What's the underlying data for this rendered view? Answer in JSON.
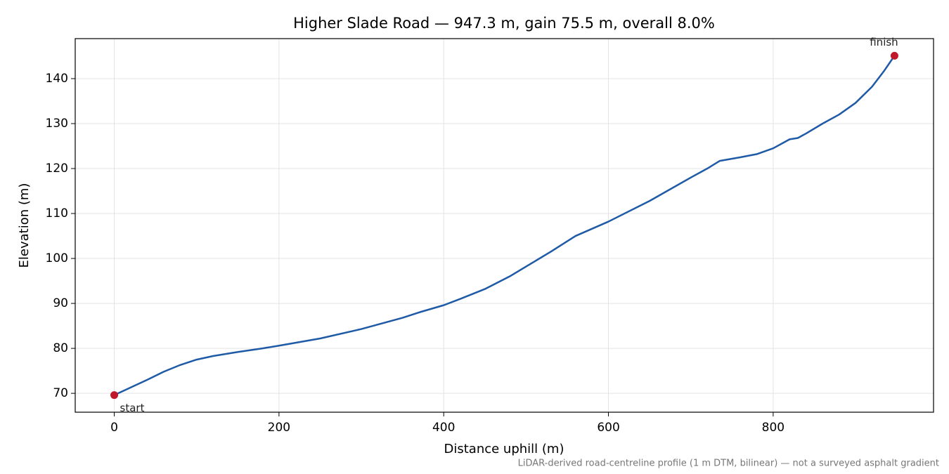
{
  "chart_data": {
    "type": "line",
    "title": "Higher Slade Road — 947.3 m, gain 75.5 m, overall 8.0%",
    "x_label": "Distance uphill (m)",
    "y_label": "Elevation (m)",
    "footnote": "LiDAR-derived road-centreline profile (1 m DTM, bilinear) — not a surveyed asphalt gradient",
    "x": [
      0,
      20,
      40,
      60,
      80,
      100,
      120,
      150,
      180,
      200,
      250,
      300,
      350,
      370,
      400,
      420,
      450,
      480,
      500,
      530,
      560,
      600,
      650,
      700,
      720,
      735,
      760,
      780,
      800,
      820,
      830,
      840,
      860,
      880,
      900,
      920,
      935,
      947.3
    ],
    "series": [
      {
        "color": "#1f5aa6",
        "values": [
          69.6,
          71.3,
          73,
          74.8,
          76.3,
          77.5,
          78.3,
          79.2,
          80,
          80.6,
          82.2,
          84.3,
          86.8,
          88,
          89.6,
          91,
          93.2,
          96,
          98.2,
          101.5,
          105,
          108.2,
          112.8,
          118,
          120,
          121.7,
          122.5,
          123.2,
          124.5,
          126.5,
          126.8,
          127.8,
          130,
          132,
          134.6,
          138.2,
          141.8,
          145.1
        ]
      }
    ],
    "endpoints": {
      "color": "#c0182a",
      "x": [
        0,
        947.3
      ],
      "values": [
        69.6,
        145.1
      ],
      "labels": [
        "start",
        "finish"
      ]
    },
    "xlim": [
      -47.4,
      994.7
    ],
    "ylim": [
      65.8,
      148.9
    ],
    "xticks": [
      0,
      200,
      400,
      600,
      800
    ],
    "yticks": [
      70,
      80,
      90,
      100,
      110,
      120,
      130,
      140
    ],
    "grid": true
  }
}
